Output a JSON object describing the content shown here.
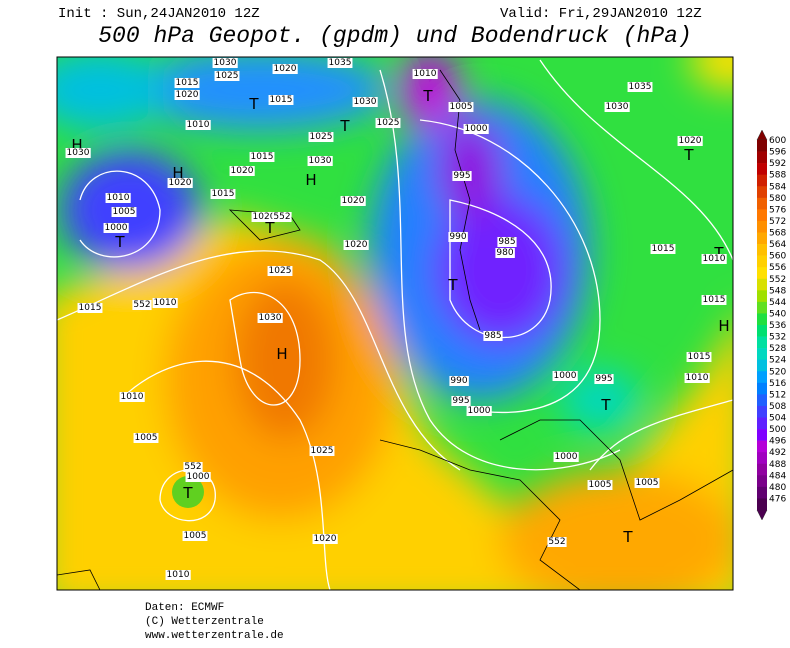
{
  "header": {
    "init": "Init : Sun,24JAN2010 12Z",
    "valid": "Valid: Fri,29JAN2010 12Z",
    "title": "500 hPa Geopot. (gpdm) und Bodendruck (hPa)"
  },
  "map": {
    "labels": [
      "1030",
      "1025",
      "1020",
      "1035",
      "1010",
      "T",
      "1005",
      "1030",
      "1035",
      "1015",
      "1020",
      "1010",
      "T",
      "1015",
      "1030",
      "1025",
      "T",
      "1000",
      "H",
      "1030",
      "1025",
      "1015",
      "1020",
      "1030",
      "H",
      "H",
      "1020",
      "1015",
      "995",
      "1020",
      "T",
      "1010",
      "1005",
      "1000",
      "T",
      "1020",
      "1020",
      "552",
      "T",
      "990",
      "985",
      "980",
      "1020",
      "1015",
      "T",
      "1010",
      "T",
      "1025",
      "1015",
      "552",
      "1010",
      "1015",
      "985",
      "1030",
      "H",
      "1015",
      "1000",
      "995",
      "990",
      "1010",
      "T",
      "1010",
      "995",
      "1000",
      "1005",
      "1025",
      "1000",
      "552",
      "1000",
      "T",
      "1005",
      "1005",
      "1005",
      "1020",
      "552",
      "T",
      "1010",
      "H"
    ]
  },
  "colorbar": {
    "levels": [
      600,
      596,
      592,
      588,
      584,
      580,
      576,
      572,
      568,
      564,
      560,
      556,
      552,
      548,
      544,
      540,
      536,
      532,
      528,
      524,
      520,
      516,
      512,
      508,
      504,
      500,
      496,
      492,
      488,
      484,
      480,
      476
    ],
    "colors": [
      "#800000",
      "#a00000",
      "#c00000",
      "#d02000",
      "#e04000",
      "#f06000",
      "#ff7800",
      "#ff9000",
      "#ffa800",
      "#ffc000",
      "#ffd000",
      "#ffe000",
      "#d8e000",
      "#a0e000",
      "#60e020",
      "#20e040",
      "#00e070",
      "#00e0a0",
      "#00d8c0",
      "#00c0e0",
      "#00a0ff",
      "#0080ff",
      "#2060ff",
      "#4040ff",
      "#6020ff",
      "#8000ff",
      "#b400d8",
      "#a000c0",
      "#9000a0",
      "#7a008a",
      "#600070",
      "#4b0050"
    ]
  },
  "footer": {
    "lines": [
      "Daten: ECMWF",
      "(C) Wetterzentrale",
      "www.wetterzentrale.de"
    ]
  }
}
